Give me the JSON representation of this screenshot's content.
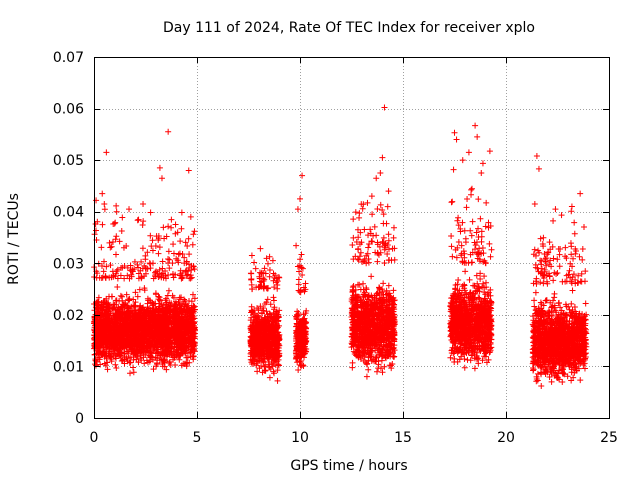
{
  "chart_data": {
    "type": "scatter",
    "title": "Day 111 of 2024, Rate Of TEC Index for receiver xplo",
    "xlabel": "GPS time / hours",
    "ylabel": "ROTI / TECUs",
    "xlim": [
      0,
      25
    ],
    "ylim": [
      0,
      0.07
    ],
    "x_ticks": [
      0,
      5,
      10,
      15,
      20,
      25
    ],
    "x_tick_labels": [
      "0",
      "5",
      "10",
      "15",
      "20",
      "25"
    ],
    "y_ticks": [
      0,
      0.01,
      0.02,
      0.03,
      0.04,
      0.05,
      0.06,
      0.07
    ],
    "y_tick_labels": [
      "0",
      "0.01",
      "0.02",
      "0.03",
      "0.04",
      "0.05",
      "0.06",
      "0.07"
    ],
    "grid": true,
    "marker": "+",
    "color": "#ff0000",
    "clusters": [
      {
        "x_range": [
          0.0,
          4.9
        ],
        "typical_range": [
          0.007,
          0.027
        ],
        "peak_range": [
          0.027,
          0.044
        ]
      },
      {
        "x_range": [
          7.6,
          9.0
        ],
        "typical_range": [
          0.006,
          0.025
        ],
        "peak_range": [
          0.025,
          0.034
        ]
      },
      {
        "x_range": [
          9.8,
          10.3
        ],
        "typical_range": [
          0.007,
          0.024
        ],
        "peak_range": [
          0.024,
          0.036
        ]
      },
      {
        "x_range": [
          12.5,
          14.6
        ],
        "typical_range": [
          0.006,
          0.03
        ],
        "peak_range": [
          0.03,
          0.047
        ]
      },
      {
        "x_range": [
          17.3,
          19.3
        ],
        "typical_range": [
          0.007,
          0.03
        ],
        "peak_range": [
          0.03,
          0.052
        ]
      },
      {
        "x_range": [
          21.3,
          23.9
        ],
        "typical_range": [
          0.004,
          0.026
        ],
        "peak_range": [
          0.026,
          0.041
        ]
      }
    ],
    "outliers": [
      {
        "x": 0.6,
        "y": 0.0515
      },
      {
        "x": 0.4,
        "y": 0.0435
      },
      {
        "x": 0.5,
        "y": 0.0415
      },
      {
        "x": 1.1,
        "y": 0.04
      },
      {
        "x": 1.7,
        "y": 0.0405
      },
      {
        "x": 3.2,
        "y": 0.0485
      },
      {
        "x": 3.3,
        "y": 0.0465
      },
      {
        "x": 3.6,
        "y": 0.0555
      },
      {
        "x": 4.6,
        "y": 0.048
      },
      {
        "x": 4.7,
        "y": 0.039
      },
      {
        "x": 10.1,
        "y": 0.047
      },
      {
        "x": 10.0,
        "y": 0.0425
      },
      {
        "x": 9.9,
        "y": 0.0405
      },
      {
        "x": 13.5,
        "y": 0.0395
      },
      {
        "x": 13.7,
        "y": 0.0465
      },
      {
        "x": 13.9,
        "y": 0.0475
      },
      {
        "x": 14.0,
        "y": 0.0505
      },
      {
        "x": 14.1,
        "y": 0.0602
      },
      {
        "x": 14.3,
        "y": 0.044
      },
      {
        "x": 17.5,
        "y": 0.0553
      },
      {
        "x": 17.6,
        "y": 0.054
      },
      {
        "x": 17.9,
        "y": 0.05
      },
      {
        "x": 18.2,
        "y": 0.0515
      },
      {
        "x": 18.5,
        "y": 0.0567
      },
      {
        "x": 18.6,
        "y": 0.0545
      },
      {
        "x": 18.8,
        "y": 0.0475
      },
      {
        "x": 21.5,
        "y": 0.0508
      },
      {
        "x": 21.6,
        "y": 0.0483
      },
      {
        "x": 21.4,
        "y": 0.0415
      },
      {
        "x": 22.4,
        "y": 0.0405
      },
      {
        "x": 23.2,
        "y": 0.041
      },
      {
        "x": 23.6,
        "y": 0.0435
      }
    ]
  }
}
